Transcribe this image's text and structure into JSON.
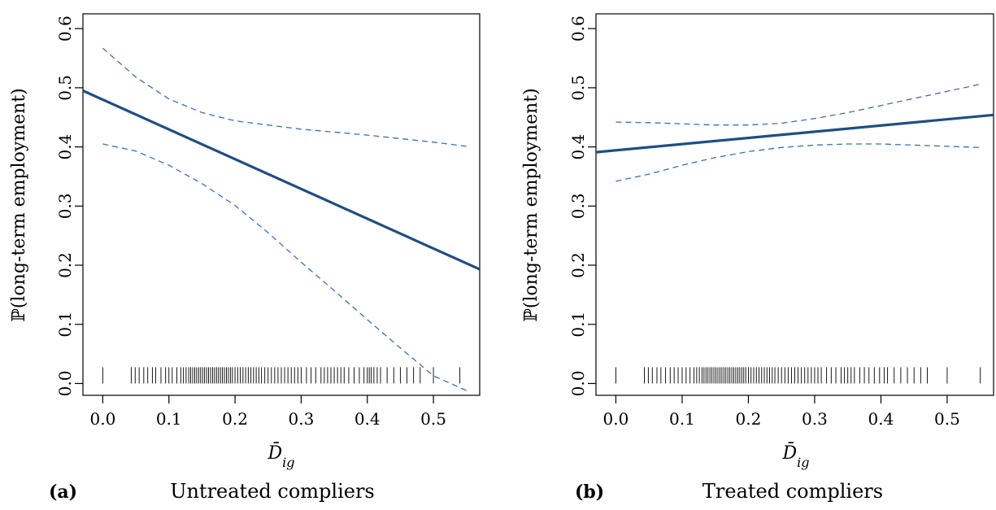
{
  "chart_data": [
    {
      "type": "line",
      "panel_tag": "(a)",
      "caption": "Untreated compliers",
      "xlabel": "D̄",
      "xlabel_sub": "ig",
      "ylabel": "ℙ(long-term employment)",
      "xlim": [
        -0.03,
        0.57
      ],
      "ylim": [
        -0.02,
        0.625
      ],
      "x_ticks": [
        "0.0",
        "0.1",
        "0.2",
        "0.3",
        "0.4",
        "0.5"
      ],
      "y_ticks": [
        "0.0",
        "0.1",
        "0.2",
        "0.3",
        "0.4",
        "0.5",
        "0.6"
      ],
      "series": [
        {
          "style": "solid",
          "x": [
            -0.03,
            0.57
          ],
          "y": [
            0.495,
            0.193
          ]
        },
        {
          "style": "dashed",
          "x": [
            0.0,
            0.05,
            0.1,
            0.15,
            0.2,
            0.25,
            0.3,
            0.35,
            0.4,
            0.45,
            0.5,
            0.55
          ],
          "y": [
            0.567,
            0.518,
            0.481,
            0.458,
            0.444,
            0.437,
            0.43,
            0.425,
            0.42,
            0.414,
            0.408,
            0.401
          ]
        },
        {
          "style": "dashed",
          "x": [
            0.0,
            0.05,
            0.1,
            0.15,
            0.2,
            0.25,
            0.3,
            0.35,
            0.4,
            0.45,
            0.5,
            0.55
          ],
          "y": [
            0.405,
            0.393,
            0.369,
            0.338,
            0.301,
            0.255,
            0.205,
            0.157,
            0.108,
            0.06,
            0.013,
            -0.012
          ]
        }
      ],
      "rug": [
        0.0,
        0.043,
        0.049,
        0.055,
        0.062,
        0.068,
        0.075,
        0.08,
        0.088,
        0.095,
        0.1,
        0.105,
        0.112,
        0.118,
        0.122,
        0.126,
        0.13,
        0.133,
        0.136,
        0.139,
        0.142,
        0.145,
        0.148,
        0.151,
        0.154,
        0.157,
        0.16,
        0.163,
        0.166,
        0.169,
        0.172,
        0.175,
        0.178,
        0.181,
        0.184,
        0.187,
        0.19,
        0.193,
        0.196,
        0.2,
        0.204,
        0.208,
        0.212,
        0.216,
        0.22,
        0.224,
        0.228,
        0.232,
        0.236,
        0.24,
        0.245,
        0.25,
        0.255,
        0.26,
        0.265,
        0.27,
        0.275,
        0.28,
        0.285,
        0.29,
        0.295,
        0.3,
        0.308,
        0.315,
        0.322,
        0.33,
        0.335,
        0.34,
        0.345,
        0.35,
        0.355,
        0.36,
        0.365,
        0.372,
        0.38,
        0.388,
        0.395,
        0.4,
        0.403,
        0.406,
        0.41,
        0.415,
        0.42,
        0.43,
        0.44,
        0.45,
        0.46,
        0.47,
        0.48,
        0.5,
        0.54
      ]
    },
    {
      "type": "line",
      "panel_tag": "(b)",
      "caption": "Treated compliers",
      "xlabel": "D̄",
      "xlabel_sub": "ig",
      "ylabel": "ℙ(long-term employment)",
      "xlim": [
        -0.03,
        0.57
      ],
      "ylim": [
        -0.02,
        0.625
      ],
      "x_ticks": [
        "0.0",
        "0.1",
        "0.2",
        "0.3",
        "0.4",
        "0.5"
      ],
      "y_ticks": [
        "0.0",
        "0.1",
        "0.2",
        "0.3",
        "0.4",
        "0.5",
        "0.6"
      ],
      "series": [
        {
          "style": "solid",
          "x": [
            -0.03,
            0.57
          ],
          "y": [
            0.391,
            0.454
          ]
        },
        {
          "style": "dashed",
          "x": [
            0.0,
            0.05,
            0.1,
            0.15,
            0.2,
            0.25,
            0.3,
            0.35,
            0.4,
            0.45,
            0.5,
            0.55
          ],
          "y": [
            0.442,
            0.441,
            0.439,
            0.437,
            0.437,
            0.44,
            0.448,
            0.458,
            0.47,
            0.482,
            0.494,
            0.506
          ]
        },
        {
          "style": "dashed",
          "x": [
            0.0,
            0.05,
            0.1,
            0.15,
            0.2,
            0.25,
            0.3,
            0.35,
            0.4,
            0.45,
            0.5,
            0.55
          ],
          "y": [
            0.342,
            0.354,
            0.369,
            0.382,
            0.392,
            0.399,
            0.403,
            0.405,
            0.405,
            0.403,
            0.401,
            0.399
          ]
        }
      ],
      "rug": [
        0.0,
        0.043,
        0.049,
        0.055,
        0.062,
        0.068,
        0.075,
        0.082,
        0.088,
        0.094,
        0.1,
        0.106,
        0.112,
        0.118,
        0.122,
        0.126,
        0.13,
        0.133,
        0.136,
        0.139,
        0.142,
        0.145,
        0.148,
        0.151,
        0.154,
        0.157,
        0.16,
        0.163,
        0.166,
        0.169,
        0.172,
        0.175,
        0.178,
        0.181,
        0.184,
        0.187,
        0.19,
        0.193,
        0.196,
        0.2,
        0.204,
        0.208,
        0.212,
        0.216,
        0.22,
        0.224,
        0.228,
        0.232,
        0.236,
        0.24,
        0.245,
        0.25,
        0.255,
        0.26,
        0.265,
        0.27,
        0.275,
        0.28,
        0.285,
        0.29,
        0.295,
        0.3,
        0.305,
        0.31,
        0.318,
        0.325,
        0.332,
        0.34,
        0.345,
        0.35,
        0.355,
        0.36,
        0.368,
        0.375,
        0.382,
        0.39,
        0.398,
        0.405,
        0.41,
        0.42,
        0.43,
        0.44,
        0.45,
        0.46,
        0.47,
        0.5,
        0.55
      ]
    }
  ],
  "colors": {
    "line": "#1f4e85",
    "dashed": "#3a6fb5",
    "axis": "#000000"
  }
}
